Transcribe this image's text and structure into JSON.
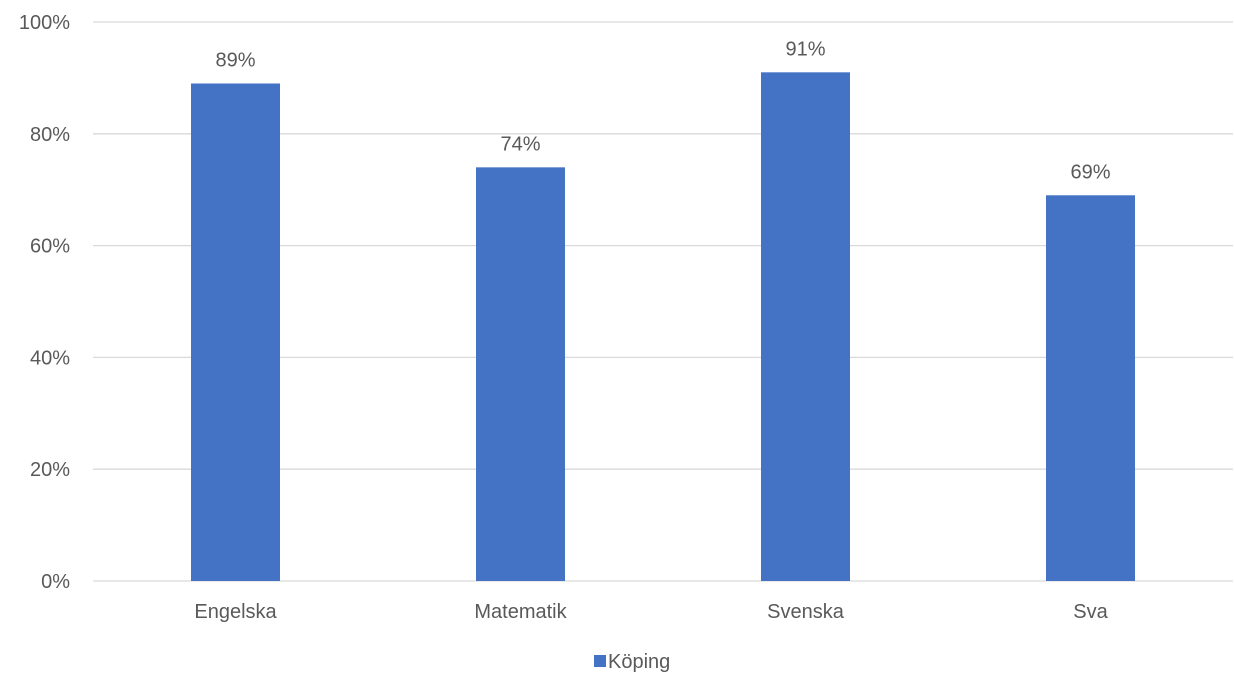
{
  "chart_data": {
    "type": "bar",
    "categories": [
      "Engelska",
      "Matematik",
      "Svenska",
      "Sva"
    ],
    "series": [
      {
        "name": "Köping",
        "values": [
          89,
          74,
          91,
          69
        ],
        "color": "#4472C4"
      }
    ],
    "data_labels": [
      "89%",
      "74%",
      "91%",
      "69%"
    ],
    "y_ticks": [
      "0%",
      "20%",
      "40%",
      "60%",
      "80%",
      "100%"
    ],
    "ylim": [
      0,
      100
    ],
    "y_tick_values": [
      0,
      20,
      40,
      60,
      80,
      100
    ],
    "grid": true,
    "gridline_color": "#D9D9D9",
    "legend_position": "bottom",
    "title": "",
    "xlabel": "",
    "ylabel": ""
  }
}
